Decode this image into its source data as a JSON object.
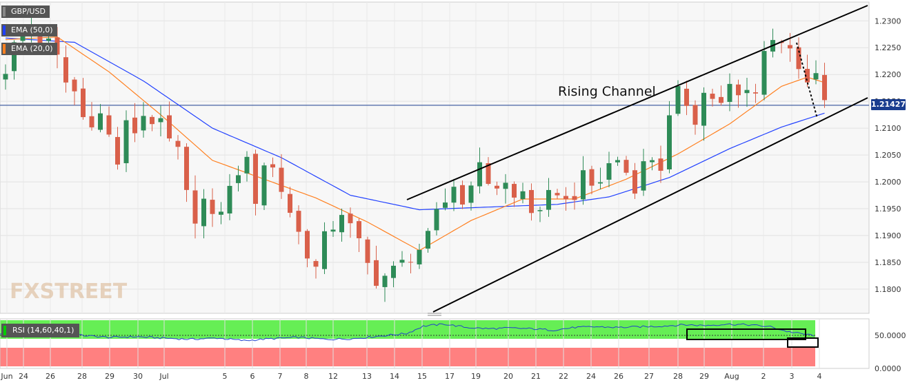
{
  "chart_data": [
    {
      "type": "candlestick",
      "title": "GBP/USD",
      "y_axis_position": "right",
      "ylim": [
        1.1755,
        1.2335
      ],
      "y_ticks": [
        "1.2300",
        "1.2250",
        "1.2200",
        "1.2150",
        "1.2100",
        "1.2050",
        "1.2000",
        "1.1950",
        "1.1900",
        "1.1850",
        "1.1800"
      ],
      "x_ticks": [
        "Jun",
        "24",
        "26",
        "28",
        "29",
        "30",
        "Jul",
        "5",
        "6",
        "7",
        "8",
        "12",
        "13",
        "14",
        "15",
        "17",
        "19",
        "20",
        "21",
        "22",
        "24",
        "26",
        "27",
        "28",
        "29",
        "Aug",
        "2",
        "3",
        "4"
      ],
      "current_price": "1.21427",
      "legend": [
        {
          "label": "EMA (50,0)",
          "color": "#2040ff"
        },
        {
          "label": "EMA (20,0)",
          "color": "#ff8020"
        }
      ],
      "series": [
        {
          "name": "GBP/USD",
          "color_up": "#2e8b57",
          "color_down": "#d9604a",
          "knots": [
            [
              0,
              1.221
            ],
            [
              1.5,
              1.2275
            ],
            [
              3,
              1.2285
            ],
            [
              4,
              1.2265
            ],
            [
              5,
              1.2258
            ],
            [
              6,
              1.223
            ],
            [
              7,
              1.2185
            ],
            [
              8,
              1.2168
            ],
            [
              9,
              1.212
            ],
            [
              10,
              1.2115
            ],
            [
              11,
              1.2125
            ],
            [
              12,
              1.2085
            ],
            [
              13,
              1.2035
            ],
            [
              14,
              1.2105
            ],
            [
              15,
              1.2095
            ],
            [
              16,
              1.2125
            ],
            [
              17,
              1.2115
            ],
            [
              18,
              1.2105
            ],
            [
              19,
              1.2075
            ],
            [
              20,
              1.2055
            ],
            [
              21,
              1.1975
            ],
            [
              22,
              1.1935
            ],
            [
              23,
              1.1965
            ],
            [
              24,
              1.1928
            ],
            [
              25,
              1.1952
            ],
            [
              26,
              1.1985
            ],
            [
              27,
              1.2022
            ],
            [
              28,
              1.2035
            ],
            [
              29,
              1.1968
            ],
            [
              30,
              1.2035
            ],
            [
              31,
              1.2025
            ],
            [
              32,
              1.1985
            ],
            [
              33,
              1.1945
            ],
            [
              34,
              1.1905
            ],
            [
              35,
              1.1868
            ],
            [
              36,
              1.1838
            ],
            [
              37,
              1.1895
            ],
            [
              38,
              1.1918
            ],
            [
              39,
              1.1945
            ],
            [
              40,
              1.1915
            ],
            [
              41,
              1.1885
            ],
            [
              42,
              1.1845
            ],
            [
              43,
              1.1818
            ],
            [
              44,
              1.1825
            ],
            [
              45,
              1.1835
            ],
            [
              46,
              1.1848
            ],
            [
              47,
              1.1862
            ],
            [
              48,
              1.1875
            ],
            [
              49,
              1.1895
            ],
            [
              50,
              1.1938
            ],
            [
              51,
              1.1962
            ],
            [
              52,
              1.1995
            ],
            [
              53,
              1.1958
            ],
            [
              54,
              1.2005
            ],
            [
              55,
              1.2025
            ],
            [
              56,
              1.2002
            ],
            [
              57,
              1.1992
            ],
            [
              58,
              1.1995
            ],
            [
              59,
              1.1968
            ],
            [
              60,
              1.1982
            ],
            [
              61,
              1.1948
            ],
            [
              62,
              1.1935
            ],
            [
              63,
              1.1972
            ],
            [
              64,
              1.1985
            ],
            [
              65,
              1.1962
            ],
            [
              66,
              1.1978
            ],
            [
              67,
              1.2008
            ],
            [
              68,
              1.1992
            ],
            [
              69,
              1.2002
            ],
            [
              70,
              1.2032
            ],
            [
              71,
              1.2042
            ],
            [
              72,
              1.2018
            ],
            [
              73,
              1.1992
            ],
            [
              74,
              1.2032
            ],
            [
              75,
              1.2045
            ],
            [
              76,
              1.2028
            ],
            [
              77,
              1.2115
            ],
            [
              78,
              1.2165
            ],
            [
              79,
              1.2148
            ],
            [
              80,
              1.2118
            ],
            [
              81,
              1.2165
            ],
            [
              82,
              1.2158
            ],
            [
              83,
              1.2142
            ],
            [
              84,
              1.2175
            ],
            [
              85,
              1.2158
            ],
            [
              86,
              1.2168
            ],
            [
              87,
              1.2175
            ],
            [
              88,
              1.2245
            ],
            [
              89,
              1.2262
            ],
            [
              90,
              1.2268
            ],
            [
              91,
              1.2255
            ],
            [
              92,
              1.2198
            ],
            [
              93,
              1.2182
            ],
            [
              94,
              1.2198
            ],
            [
              95,
              1.21427
            ]
          ]
        },
        {
          "name": "EMA (50,0)",
          "color": "#2040ff",
          "knots": [
            [
              0,
              1.2268
            ],
            [
              8,
              1.226
            ],
            [
              16,
              1.2188
            ],
            [
              24,
              1.21
            ],
            [
              32,
              1.2045
            ],
            [
              40,
              1.1975
            ],
            [
              48,
              1.1948
            ],
            [
              56,
              1.1953
            ],
            [
              64,
              1.1958
            ],
            [
              70,
              1.1972
            ],
            [
              77,
              1.2008
            ],
            [
              84,
              1.2062
            ],
            [
              90,
              1.2102
            ],
            [
              95,
              1.2128
            ]
          ]
        },
        {
          "name": "EMA (20,0)",
          "color": "#ff8020",
          "knots": [
            [
              0,
              1.2265
            ],
            [
              6,
              1.227
            ],
            [
              12,
              1.2205
            ],
            [
              18,
              1.2125
            ],
            [
              24,
              1.204
            ],
            [
              30,
              1.2005
            ],
            [
              36,
              1.197
            ],
            [
              42,
              1.1925
            ],
            [
              48,
              1.1872
            ],
            [
              54,
              1.1928
            ],
            [
              60,
              1.1968
            ],
            [
              66,
              1.1968
            ],
            [
              72,
              1.2005
            ],
            [
              78,
              1.2052
            ],
            [
              84,
              1.2108
            ],
            [
              90,
              1.2178
            ],
            [
              93,
              1.2195
            ],
            [
              95,
              1.2185
            ]
          ]
        }
      ],
      "annotations": [
        {
          "text": "Rising Channel"
        }
      ]
    },
    {
      "type": "line",
      "title": "RSI (14,60,40,1)",
      "ylim": [
        0,
        75
      ],
      "y_ticks": [
        "50.0000",
        "0.0000"
      ],
      "zones": {
        "upper": {
          "from": 60,
          "color": "#66ee55"
        },
        "lower": {
          "to": 40,
          "color": "#ff8080"
        }
      },
      "series": [
        {
          "name": "RSI",
          "color": "#2040cc",
          "knots": [
            [
              0,
              52
            ],
            [
              5,
              58
            ],
            [
              10,
              56
            ],
            [
              15,
              50
            ],
            [
              20,
              47
            ],
            [
              25,
              48
            ],
            [
              30,
              46
            ],
            [
              35,
              44
            ],
            [
              40,
              46
            ],
            [
              45,
              42
            ],
            [
              50,
              45
            ],
            [
              55,
              47
            ],
            [
              60,
              44
            ],
            [
              65,
              45
            ],
            [
              70,
              49
            ],
            [
              75,
              53
            ],
            [
              78,
              64
            ],
            [
              82,
              67
            ],
            [
              86,
              62
            ],
            [
              90,
              60
            ],
            [
              94,
              61
            ],
            [
              98,
              60
            ],
            [
              102,
              58
            ],
            [
              106,
              62
            ],
            [
              110,
              63
            ],
            [
              114,
              62
            ],
            [
              118,
              63
            ],
            [
              122,
              64
            ],
            [
              126,
              66
            ],
            [
              130,
              65
            ],
            [
              134,
              67
            ],
            [
              138,
              66
            ],
            [
              142,
              63
            ],
            [
              145,
              56
            ],
            [
              148,
              52
            ],
            [
              150,
              50
            ]
          ]
        }
      ]
    }
  ],
  "watermark": "FXSTREET"
}
